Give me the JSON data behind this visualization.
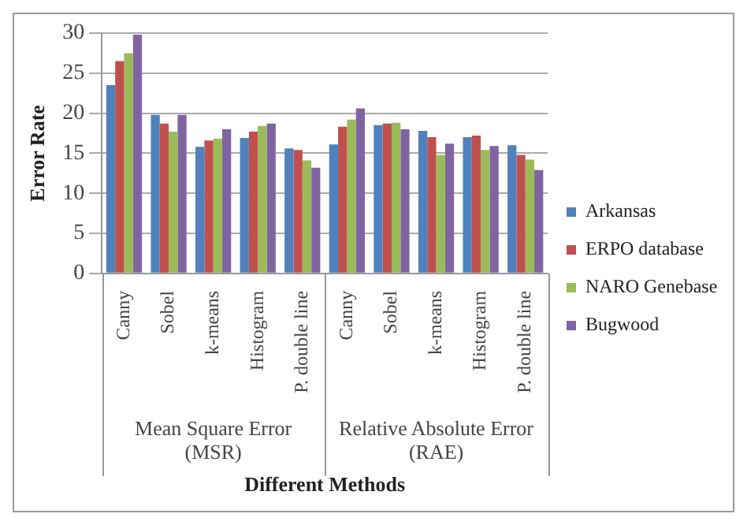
{
  "chart_data": {
    "type": "bar",
    "xlabel": "Different Methods",
    "ylabel": "Error Rate",
    "categories": [
      "Canny",
      "Sobel",
      "k-means",
      "Histogram",
      "P. double line",
      "Canny",
      "Sobel",
      "k-means",
      "Histogram",
      "P. double line"
    ],
    "annotations": [
      "Mean Square Error (MSR)",
      "Relative Absolute Error (RAE)"
    ],
    "series": [
      {
        "name": "Arkansas",
        "color": "#4f81bd",
        "values": [
          23.5,
          19.8,
          15.8,
          16.9,
          15.6,
          16.1,
          18.5,
          17.8,
          17.0,
          16.0
        ]
      },
      {
        "name": "ERPO database",
        "color": "#c0504d",
        "values": [
          26.5,
          18.7,
          16.6,
          17.7,
          15.4,
          18.3,
          18.7,
          17.0,
          17.2,
          14.8
        ]
      },
      {
        "name": "NARO Genebase",
        "color": "#9bbb59",
        "values": [
          27.5,
          17.7,
          16.8,
          18.4,
          14.1,
          19.2,
          18.8,
          14.8,
          15.4,
          14.2
        ]
      },
      {
        "name": "Bugwood",
        "color": "#8064a2",
        "values": [
          29.8,
          19.8,
          18.0,
          18.7,
          13.2,
          20.6,
          18.0,
          16.2,
          15.9,
          12.9
        ]
      }
    ],
    "ylim": [
      0,
      30
    ],
    "yticks": [
      0,
      5,
      10,
      15,
      20,
      25,
      30
    ],
    "grid": "y",
    "legend": "right"
  }
}
